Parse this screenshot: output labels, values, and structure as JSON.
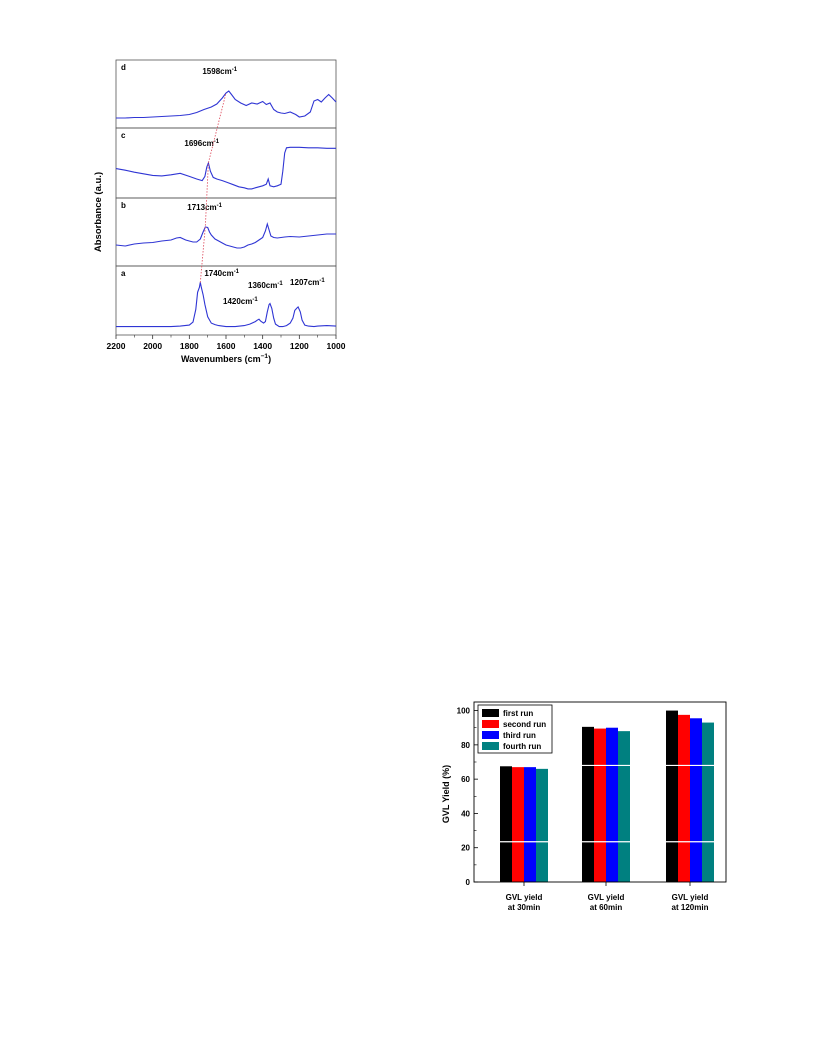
{
  "chart_data": [
    {
      "type": "line",
      "xlabel": "Wavenumbers (cm",
      "xlabel_sup": "−1",
      "xlabel_close": ")",
      "ylabel": "Absorbance (a.u.)",
      "xlim": [
        2200,
        1000
      ],
      "x_reversed": true,
      "x_ticks": [
        "2200",
        "2000",
        "1800",
        "1600",
        "1400",
        "1200",
        "1000"
      ],
      "line_color": "#2f35d4",
      "guide_color": "#e05a6a",
      "panels": [
        {
          "name": "d",
          "annotations": [
            {
              "text": "1598cm",
              "sup": "-1"
            }
          ],
          "x": [
            2200,
            2150,
            2100,
            2050,
            2000,
            1950,
            1900,
            1850,
            1800,
            1760,
            1720,
            1680,
            1650,
            1620,
            1600,
            1585,
            1570,
            1550,
            1520,
            1490,
            1460,
            1430,
            1400,
            1380,
            1360,
            1340,
            1320,
            1300,
            1280,
            1250,
            1220,
            1200,
            1170,
            1140,
            1120,
            1100,
            1080,
            1060,
            1040,
            1020,
            1000
          ],
          "y": [
            0.08,
            0.08,
            0.09,
            0.09,
            0.1,
            0.11,
            0.12,
            0.13,
            0.15,
            0.19,
            0.25,
            0.3,
            0.36,
            0.48,
            0.58,
            0.62,
            0.55,
            0.45,
            0.38,
            0.33,
            0.38,
            0.36,
            0.41,
            0.35,
            0.38,
            0.25,
            0.2,
            0.18,
            0.17,
            0.2,
            0.15,
            0.1,
            0.12,
            0.2,
            0.42,
            0.45,
            0.4,
            0.48,
            0.55,
            0.48,
            0.4
          ]
        },
        {
          "name": "c",
          "annotations": [
            {
              "text": "1696cm",
              "sup": "-1"
            }
          ],
          "x": [
            2200,
            2150,
            2100,
            2050,
            2000,
            1950,
            1900,
            1850,
            1800,
            1760,
            1730,
            1715,
            1705,
            1696,
            1685,
            1670,
            1650,
            1620,
            1590,
            1560,
            1530,
            1500,
            1480,
            1460,
            1440,
            1420,
            1400,
            1380,
            1370,
            1360,
            1340,
            1320,
            1300,
            1290,
            1280,
            1270,
            1250,
            1200,
            1150,
            1100,
            1050,
            1000
          ],
          "y": [
            0.45,
            0.42,
            0.38,
            0.35,
            0.32,
            0.31,
            0.33,
            0.36,
            0.3,
            0.25,
            0.22,
            0.3,
            0.48,
            0.56,
            0.4,
            0.28,
            0.25,
            0.22,
            0.18,
            0.14,
            0.1,
            0.08,
            0.06,
            0.06,
            0.08,
            0.1,
            0.12,
            0.15,
            0.25,
            0.12,
            0.1,
            0.12,
            0.15,
            0.4,
            0.75,
            0.85,
            0.86,
            0.86,
            0.85,
            0.85,
            0.84,
            0.84
          ]
        },
        {
          "name": "b",
          "annotations": [
            {
              "text": "1713cm",
              "sup": "-1"
            }
          ],
          "x": [
            2200,
            2150,
            2100,
            2050,
            2000,
            1950,
            1900,
            1870,
            1850,
            1820,
            1800,
            1780,
            1760,
            1740,
            1725,
            1713,
            1700,
            1690,
            1680,
            1660,
            1640,
            1620,
            1600,
            1580,
            1560,
            1540,
            1520,
            1500,
            1480,
            1460,
            1440,
            1420,
            1400,
            1385,
            1375,
            1365,
            1355,
            1340,
            1320,
            1300,
            1280,
            1250,
            1200,
            1150,
            1100,
            1050,
            1000
          ],
          "y": [
            0.3,
            0.28,
            0.32,
            0.34,
            0.35,
            0.38,
            0.4,
            0.44,
            0.45,
            0.4,
            0.38,
            0.36,
            0.36,
            0.42,
            0.56,
            0.66,
            0.65,
            0.56,
            0.5,
            0.42,
            0.38,
            0.34,
            0.3,
            0.28,
            0.26,
            0.24,
            0.24,
            0.26,
            0.3,
            0.32,
            0.35,
            0.4,
            0.45,
            0.58,
            0.72,
            0.6,
            0.48,
            0.45,
            0.44,
            0.45,
            0.46,
            0.47,
            0.46,
            0.48,
            0.5,
            0.52,
            0.52
          ]
        },
        {
          "name": "a",
          "annotations": [
            {
              "text": "1740cm",
              "sup": "-1"
            },
            {
              "text": "1360cm",
              "sup": "-1"
            },
            {
              "text": "1207cm",
              "sup": "-1"
            },
            {
              "text": "1420cm",
              "sup": "-1"
            }
          ],
          "x": [
            2200,
            2150,
            2100,
            2050,
            2000,
            1950,
            1900,
            1850,
            1800,
            1780,
            1765,
            1755,
            1745,
            1740,
            1735,
            1725,
            1715,
            1700,
            1680,
            1660,
            1640,
            1600,
            1550,
            1500,
            1470,
            1440,
            1430,
            1420,
            1410,
            1395,
            1385,
            1375,
            1365,
            1360,
            1350,
            1340,
            1330,
            1310,
            1290,
            1270,
            1250,
            1235,
            1225,
            1215,
            1207,
            1195,
            1185,
            1170,
            1150,
            1120,
            1100,
            1050,
            1000
          ],
          "y": [
            0.05,
            0.05,
            0.05,
            0.05,
            0.05,
            0.05,
            0.05,
            0.06,
            0.08,
            0.14,
            0.4,
            0.75,
            0.85,
            0.95,
            0.85,
            0.7,
            0.5,
            0.25,
            0.12,
            0.09,
            0.07,
            0.05,
            0.05,
            0.07,
            0.1,
            0.15,
            0.18,
            0.2,
            0.16,
            0.12,
            0.15,
            0.35,
            0.5,
            0.52,
            0.42,
            0.22,
            0.1,
            0.05,
            0.05,
            0.07,
            0.12,
            0.22,
            0.38,
            0.42,
            0.45,
            0.35,
            0.18,
            0.08,
            0.06,
            0.05,
            0.06,
            0.07,
            0.06
          ]
        }
      ]
    },
    {
      "type": "bar",
      "ylabel": "GVL Yield (%)",
      "ylim": [
        0,
        105
      ],
      "y_ticks": [
        0,
        20,
        40,
        60,
        80,
        100
      ],
      "categories": [
        [
          "GVL yield",
          "at 30min"
        ],
        [
          "GVL yield",
          "at 60min"
        ],
        [
          "GVL yield",
          "at 120min"
        ]
      ],
      "series": [
        {
          "name": "first run",
          "color": "#000000",
          "values": [
            67.5,
            90.5,
            100
          ]
        },
        {
          "name": "second run",
          "color": "#ff0000",
          "values": [
            67,
            89.5,
            97.5
          ]
        },
        {
          "name": "third run",
          "color": "#0000ff",
          "values": [
            67,
            90,
            95.5
          ]
        },
        {
          "name": "fourth run",
          "color": "#008080",
          "values": [
            66,
            88,
            93
          ]
        }
      ],
      "legend_position": "top-left",
      "horizontal_white_lines_at": [
        23.5,
        68
      ]
    }
  ]
}
